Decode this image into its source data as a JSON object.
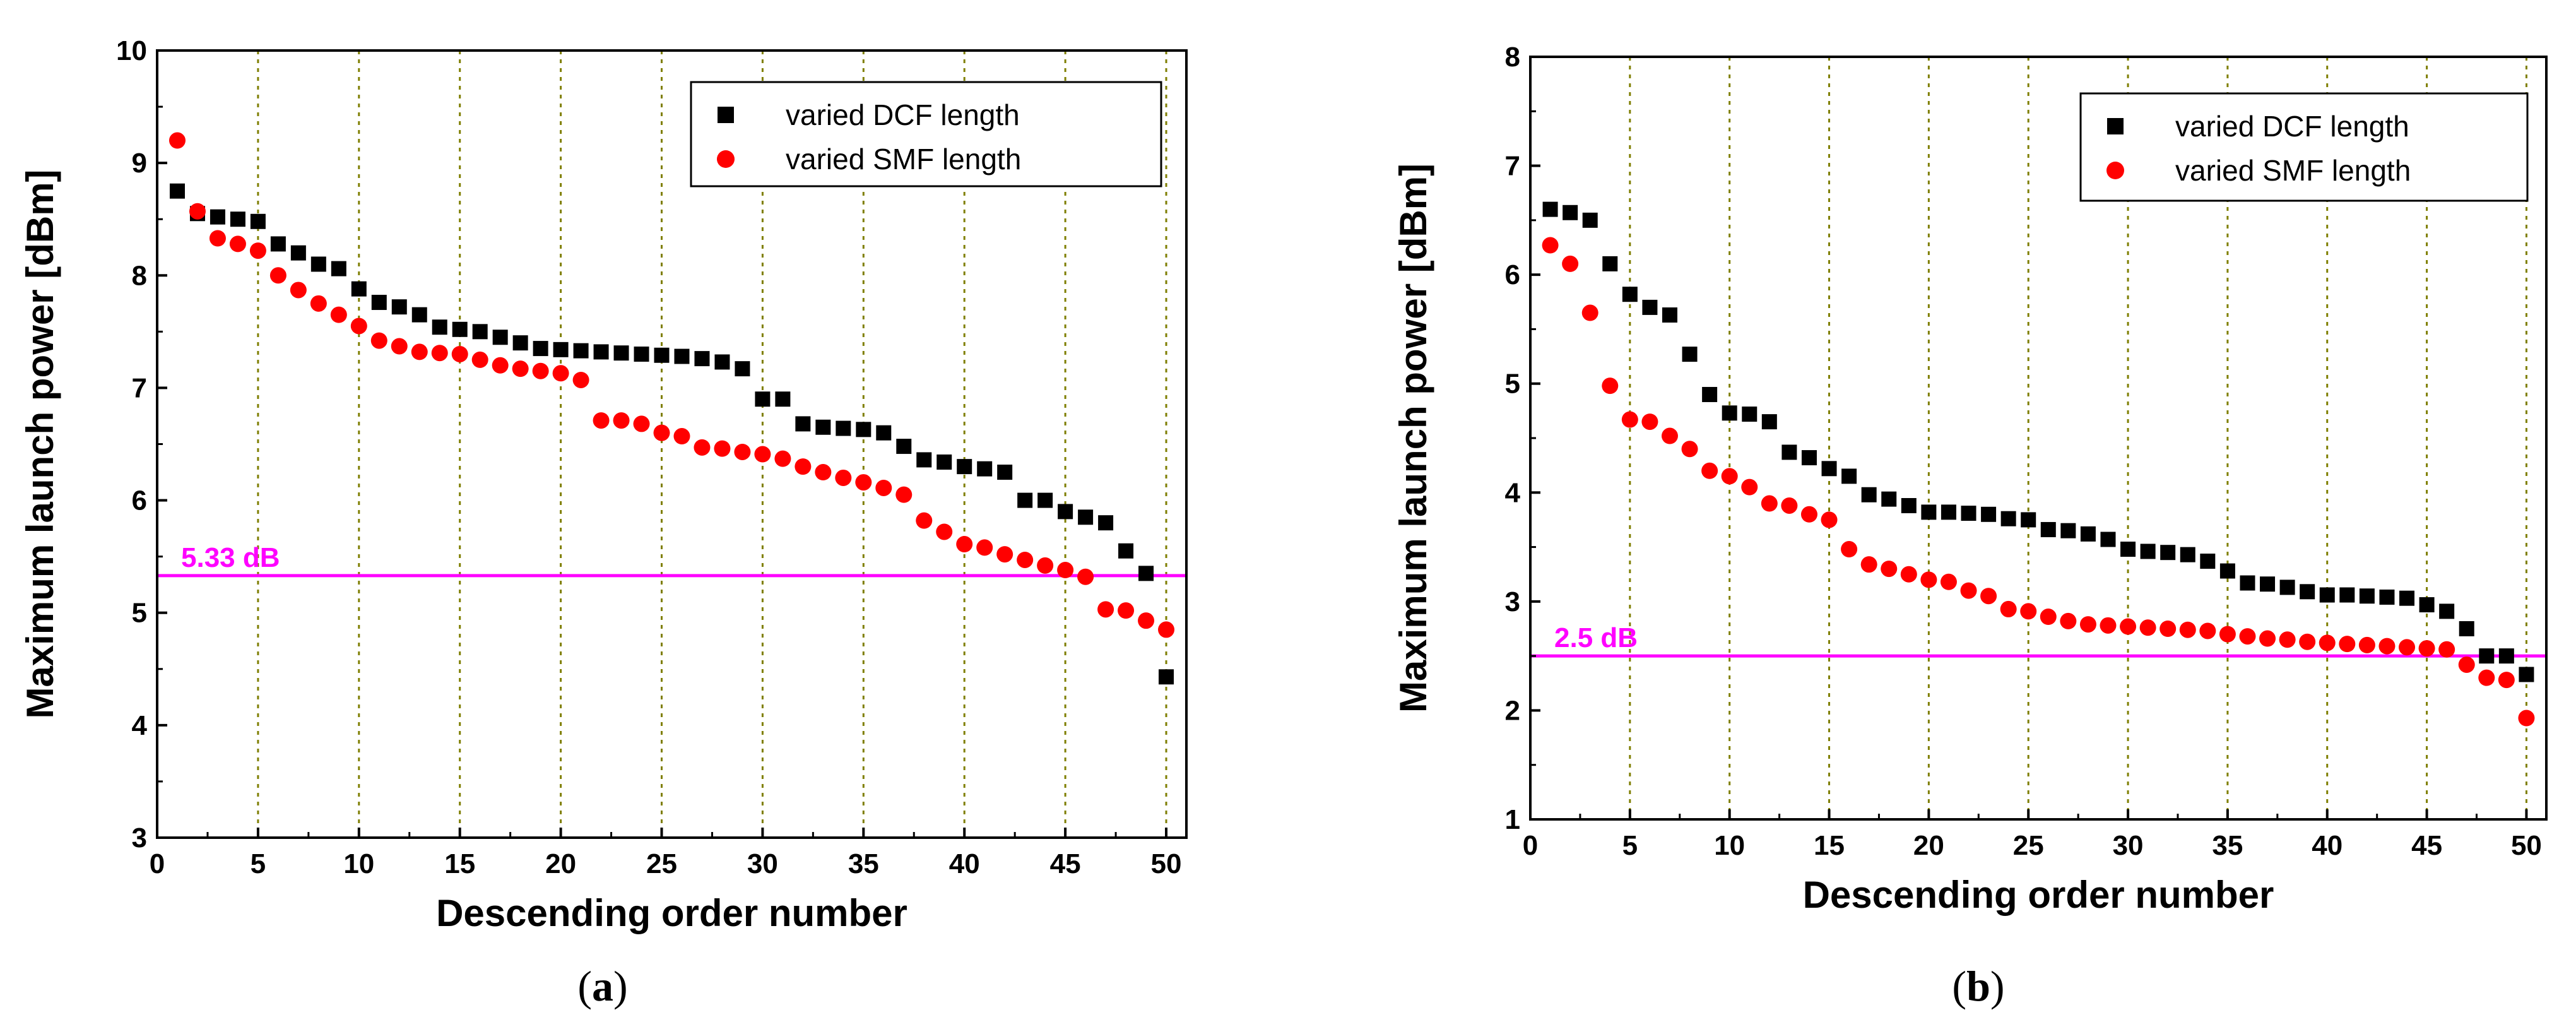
{
  "colors": {
    "dcf": "#000000",
    "smf": "#ff0000",
    "reference": "#ff00ff",
    "grid": "#7f7f00",
    "frame": "#000000"
  },
  "chart_data": [
    {
      "type": "scatter",
      "caption_letter": "a",
      "caption_open": "(",
      "caption_close": ")",
      "xlabel": "Descending order number",
      "ylabel": "Maximum launch power [dBm]",
      "xlim": [
        0,
        51
      ],
      "ylim": [
        3,
        10
      ],
      "xticks": [
        0,
        5,
        10,
        15,
        20,
        25,
        30,
        35,
        40,
        45,
        50
      ],
      "yticks": [
        3,
        4,
        5,
        6,
        7,
        8,
        9,
        10
      ],
      "grid": "vertical dotted",
      "legend_position": "top-right",
      "reference": {
        "value": 5.33,
        "label": "5.33 dB"
      },
      "series": [
        {
          "name": "varied DCF length",
          "marker": "square",
          "color": "#000000",
          "x": [
            1,
            2,
            3,
            4,
            5,
            6,
            7,
            8,
            9,
            10,
            11,
            12,
            13,
            14,
            15,
            16,
            17,
            18,
            19,
            20,
            21,
            22,
            23,
            24,
            25,
            26,
            27,
            28,
            29,
            30,
            31,
            32,
            33,
            34,
            35,
            36,
            37,
            38,
            39,
            40,
            41,
            42,
            43,
            44,
            45,
            46,
            47,
            48,
            49,
            50
          ],
          "values": [
            8.75,
            8.55,
            8.52,
            8.5,
            8.48,
            8.28,
            8.2,
            8.1,
            8.06,
            7.88,
            7.76,
            7.72,
            7.65,
            7.54,
            7.52,
            7.5,
            7.45,
            7.4,
            7.35,
            7.34,
            7.33,
            7.32,
            7.31,
            7.3,
            7.29,
            7.28,
            7.26,
            7.23,
            7.17,
            6.9,
            6.9,
            6.68,
            6.65,
            6.64,
            6.63,
            6.6,
            6.48,
            6.36,
            6.34,
            6.3,
            6.28,
            6.25,
            6.0,
            6.0,
            5.9,
            5.85,
            5.8,
            5.55,
            5.35,
            4.43
          ]
        },
        {
          "name": "varied SMF length",
          "marker": "circle",
          "color": "#ff0000",
          "x": [
            1,
            2,
            3,
            4,
            5,
            6,
            7,
            8,
            9,
            10,
            11,
            12,
            13,
            14,
            15,
            16,
            17,
            18,
            19,
            20,
            21,
            22,
            23,
            24,
            25,
            26,
            27,
            28,
            29,
            30,
            31,
            32,
            33,
            34,
            35,
            36,
            37,
            38,
            39,
            40,
            41,
            42,
            43,
            44,
            45,
            46,
            47,
            48,
            49,
            50
          ],
          "values": [
            9.2,
            8.57,
            8.33,
            8.28,
            8.22,
            8.0,
            7.87,
            7.75,
            7.65,
            7.55,
            7.42,
            7.37,
            7.32,
            7.31,
            7.3,
            7.25,
            7.2,
            7.17,
            7.15,
            7.13,
            7.07,
            6.71,
            6.71,
            6.68,
            6.6,
            6.57,
            6.47,
            6.46,
            6.43,
            6.41,
            6.37,
            6.3,
            6.25,
            6.2,
            6.16,
            6.11,
            6.05,
            5.82,
            5.72,
            5.61,
            5.58,
            5.52,
            5.47,
            5.42,
            5.38,
            5.32,
            5.03,
            5.02,
            4.93,
            4.85
          ]
        }
      ]
    },
    {
      "type": "scatter",
      "caption_letter": "b",
      "caption_open": "(",
      "caption_close": ")",
      "xlabel": "Descending order number",
      "ylabel": "Maximum launch power [dBm]",
      "xlim": [
        0,
        51
      ],
      "ylim": [
        1,
        8
      ],
      "xticks": [
        0,
        5,
        10,
        15,
        20,
        25,
        30,
        35,
        40,
        45,
        50
      ],
      "yticks": [
        1,
        2,
        3,
        4,
        5,
        6,
        7,
        8
      ],
      "grid": "vertical dotted",
      "legend_position": "top-right",
      "reference": {
        "value": 2.5,
        "label": "2.5 dB"
      },
      "series": [
        {
          "name": "varied DCF length",
          "marker": "square",
          "color": "#000000",
          "x": [
            1,
            2,
            3,
            4,
            5,
            6,
            7,
            8,
            9,
            10,
            11,
            12,
            13,
            14,
            15,
            16,
            17,
            18,
            19,
            20,
            21,
            22,
            23,
            24,
            25,
            26,
            27,
            28,
            29,
            30,
            31,
            32,
            33,
            34,
            35,
            36,
            37,
            38,
            39,
            40,
            41,
            42,
            43,
            44,
            45,
            46,
            47,
            48,
            49,
            50
          ],
          "values": [
            6.6,
            6.57,
            6.5,
            6.1,
            5.82,
            5.7,
            5.63,
            5.27,
            4.9,
            4.73,
            4.72,
            4.65,
            4.37,
            4.32,
            4.22,
            4.15,
            3.98,
            3.94,
            3.88,
            3.82,
            3.82,
            3.81,
            3.8,
            3.76,
            3.75,
            3.66,
            3.65,
            3.62,
            3.57,
            3.48,
            3.46,
            3.45,
            3.43,
            3.37,
            3.28,
            3.17,
            3.16,
            3.13,
            3.09,
            3.06,
            3.06,
            3.05,
            3.04,
            3.03,
            2.97,
            2.91,
            2.75,
            2.5,
            2.5,
            2.33
          ]
        },
        {
          "name": "varied SMF length",
          "marker": "circle",
          "color": "#ff0000",
          "x": [
            1,
            2,
            3,
            4,
            5,
            6,
            7,
            8,
            9,
            10,
            11,
            12,
            13,
            14,
            15,
            16,
            17,
            18,
            19,
            20,
            21,
            22,
            23,
            24,
            25,
            26,
            27,
            28,
            29,
            30,
            31,
            32,
            33,
            34,
            35,
            36,
            37,
            38,
            39,
            40,
            41,
            42,
            43,
            44,
            45,
            46,
            47,
            48,
            49,
            50
          ],
          "values": [
            6.27,
            6.1,
            5.65,
            4.98,
            4.67,
            4.65,
            4.52,
            4.4,
            4.2,
            4.15,
            4.05,
            3.9,
            3.88,
            3.8,
            3.75,
            3.48,
            3.34,
            3.3,
            3.25,
            3.2,
            3.18,
            3.1,
            3.05,
            2.93,
            2.91,
            2.86,
            2.82,
            2.79,
            2.78,
            2.77,
            2.76,
            2.75,
            2.74,
            2.73,
            2.7,
            2.68,
            2.66,
            2.65,
            2.63,
            2.62,
            2.61,
            2.6,
            2.59,
            2.58,
            2.57,
            2.56,
            2.42,
            2.3,
            2.28,
            1.93
          ]
        }
      ]
    }
  ]
}
